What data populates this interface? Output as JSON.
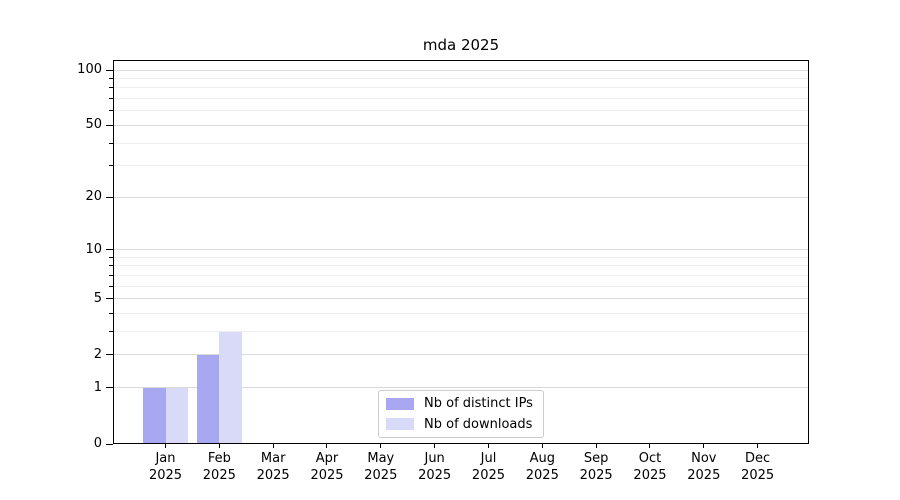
{
  "title": "mda 2025",
  "legend": {
    "items": [
      {
        "label": "Nb of distinct IPs",
        "color": "#a8a8f2"
      },
      {
        "label": "Nb of downloads",
        "color": "#d9d9f8"
      }
    ]
  },
  "chart_data": {
    "type": "bar",
    "title": "mda 2025",
    "scale": "log1p",
    "categories": [
      "Jan 2025",
      "Feb 2025",
      "Mar 2025",
      "Apr 2025",
      "May 2025",
      "Jun 2025",
      "Jul 2025",
      "Aug 2025",
      "Sep 2025",
      "Oct 2025",
      "Nov 2025",
      "Dec 2025"
    ],
    "series": [
      {
        "name": "Nb of distinct IPs",
        "color": "#a8a8f2",
        "values": [
          1,
          2,
          0,
          0,
          0,
          0,
          0,
          0,
          0,
          0,
          0,
          0
        ]
      },
      {
        "name": "Nb of downloads",
        "color": "#d9d9f8",
        "values": [
          1,
          3,
          0,
          0,
          0,
          0,
          0,
          0,
          0,
          0,
          0,
          0
        ]
      }
    ],
    "ylim": [
      0,
      113.3
    ],
    "y_ticks": [
      0,
      1,
      2,
      5,
      10,
      20,
      50,
      100
    ],
    "y_minor_ticks": [
      3,
      4,
      6,
      7,
      8,
      9,
      30,
      40,
      60,
      70,
      80,
      90
    ],
    "grid": {
      "major_color": "#d9d9d9",
      "minor_color": "#efefef"
    },
    "legend_position": "lower center",
    "xlabel": "",
    "ylabel": ""
  },
  "colors": {
    "background": "#ffffff",
    "spine": "#000000",
    "text": "#000000"
  }
}
